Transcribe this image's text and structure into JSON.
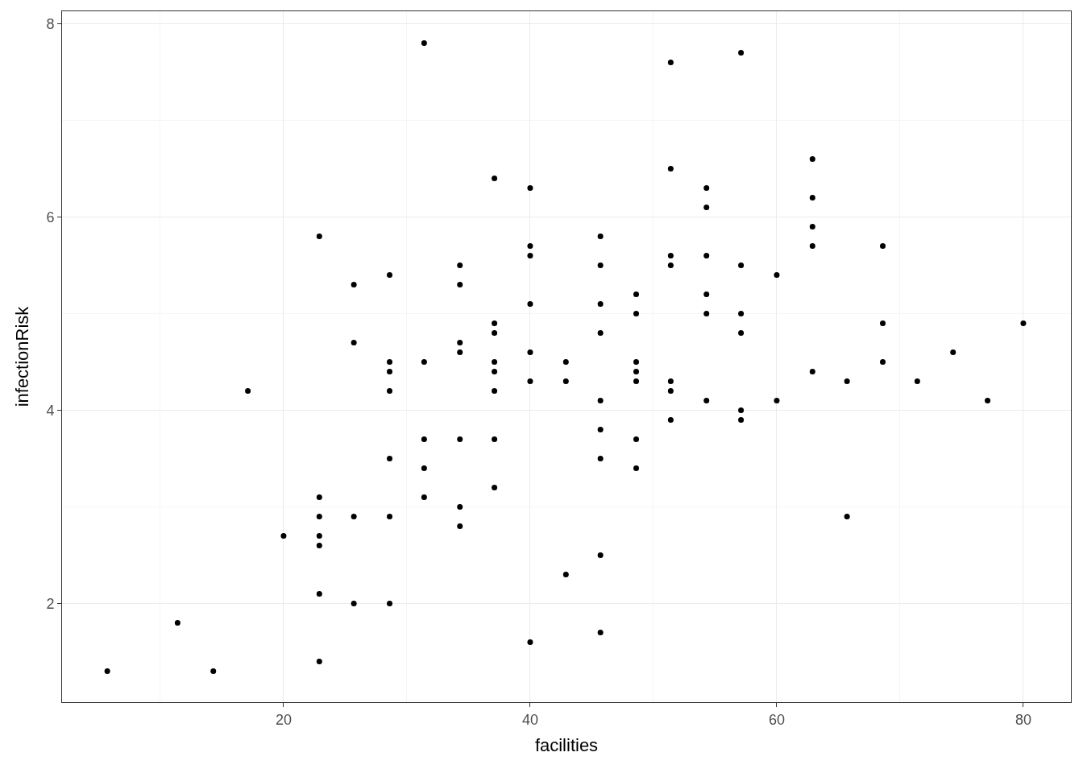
{
  "chart_data": {
    "type": "scatter",
    "xlabel": "facilities",
    "ylabel": "infectionRisk",
    "xlim": [
      2.03,
      83.86
    ],
    "ylim": [
      0.98,
      8.13
    ],
    "xticks": [
      20,
      40,
      60,
      80
    ],
    "yticks": [
      2,
      4,
      6,
      8
    ],
    "grid": true,
    "marker": "circle",
    "series": [
      {
        "color": "#000000",
        "x": [
          5.7,
          11.4,
          14.3,
          17.1,
          20,
          22.9,
          22.9,
          22.9,
          22.9,
          22.9,
          22.9,
          22.9,
          25.7,
          25.7,
          25.7,
          25.7,
          28.6,
          28.6,
          28.6,
          28.6,
          28.6,
          28.6,
          28.6,
          31.4,
          31.4,
          31.4,
          31.4,
          31.4,
          34.3,
          34.3,
          34.3,
          34.3,
          34.3,
          34.3,
          34.3,
          37.1,
          37.1,
          37.1,
          37.1,
          37.1,
          37.1,
          37.1,
          37.1,
          40,
          40,
          40,
          40,
          40,
          40,
          40,
          42.9,
          42.9,
          42.9,
          45.7,
          45.7,
          45.7,
          45.7,
          45.7,
          45.7,
          45.7,
          45.7,
          45.7,
          48.6,
          48.6,
          48.6,
          48.6,
          48.6,
          48.6,
          48.6,
          51.4,
          51.4,
          51.4,
          51.4,
          51.4,
          51.4,
          51.4,
          54.3,
          54.3,
          54.3,
          54.3,
          54.3,
          54.3,
          57.1,
          57.1,
          57.1,
          57.1,
          57.1,
          57.1,
          60,
          60,
          62.9,
          62.9,
          62.9,
          62.9,
          62.9,
          65.7,
          65.7,
          68.6,
          68.6,
          68.6,
          71.4,
          74.3,
          77.1,
          80
        ],
        "values": [
          1.3,
          1.8,
          1.3,
          4.2,
          2.7,
          5.8,
          3.1,
          2.9,
          2.7,
          2.6,
          2.1,
          1.4,
          5.3,
          4.7,
          2.9,
          2.0,
          5.4,
          4.5,
          4.4,
          4.2,
          3.5,
          2.9,
          2.0,
          7.8,
          4.5,
          3.7,
          3.4,
          3.1,
          5.5,
          5.3,
          4.7,
          4.6,
          3.7,
          3.0,
          2.8,
          6.4,
          4.9,
          4.8,
          4.5,
          4.4,
          4.2,
          3.7,
          3.2,
          6.3,
          5.7,
          5.6,
          5.1,
          4.6,
          4.3,
          1.6,
          4.5,
          4.3,
          2.3,
          5.8,
          5.5,
          5.1,
          4.8,
          4.1,
          3.8,
          3.5,
          2.5,
          1.7,
          5.2,
          5.0,
          4.5,
          4.4,
          4.3,
          3.7,
          3.4,
          7.6,
          6.5,
          5.6,
          5.5,
          4.3,
          4.2,
          3.9,
          6.3,
          6.1,
          5.6,
          5.2,
          5.0,
          4.1,
          7.7,
          5.5,
          5.0,
          4.8,
          4.0,
          3.9,
          5.4,
          4.1,
          6.6,
          6.2,
          5.9,
          5.7,
          4.4,
          4.3,
          2.9,
          5.7,
          4.9,
          4.5,
          4.3,
          4.6,
          4.1,
          4.9
        ]
      }
    ]
  }
}
